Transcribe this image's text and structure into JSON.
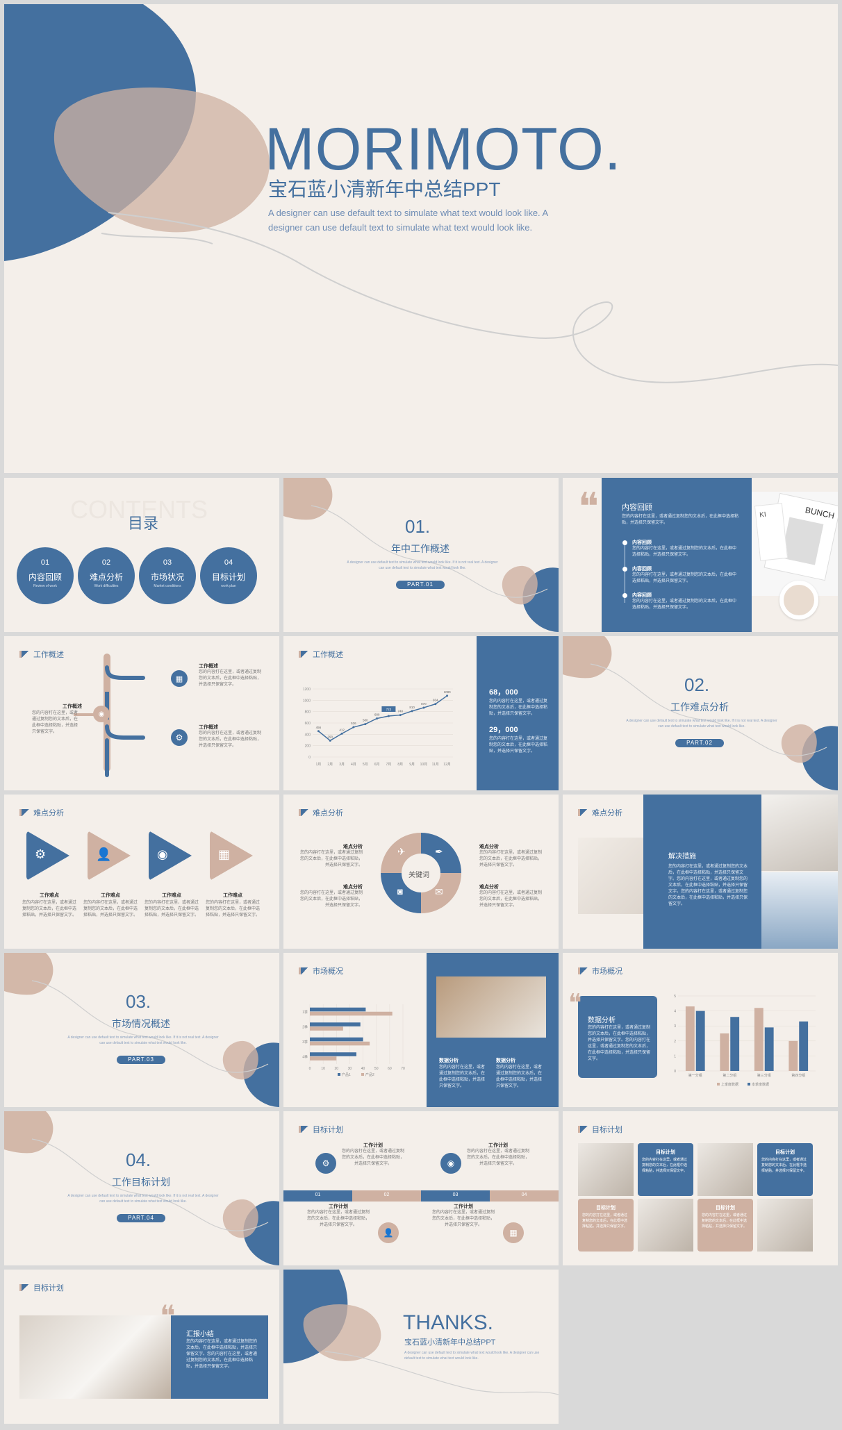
{
  "colors": {
    "blue": "#44709f",
    "tan": "#cfb1a2",
    "bg": "#f4efea"
  },
  "hero": {
    "title": "MORIMOTO.",
    "subtitle": "宝石蓝小清新年中总结PPT",
    "desc": "A designer can use default text to simulate what text would look like. A designer can use default text to simulate what text would look like."
  },
  "contents": {
    "ghost": "CONTENTS",
    "title": "目录",
    "items": [
      {
        "num": "01",
        "label": "内容回顾",
        "sub": "Review of work"
      },
      {
        "num": "02",
        "label": "难点分析",
        "sub": "Work difficulties"
      },
      {
        "num": "03",
        "label": "市场状况",
        "sub": "Market conditions"
      },
      {
        "num": "04",
        "label": "目标计划",
        "sub": "work plan"
      }
    ]
  },
  "section1": {
    "num": "01.",
    "title": "年中工作概述",
    "desc": "A designer can use default text to simulate what text would look like. If it is not real text. A designer can use default text to simulate what text would look like.",
    "part": "PART.01"
  },
  "section2": {
    "num": "02.",
    "title": "工作难点分析",
    "desc": "A designer can use default text to simulate what text would look like. If it is not real text. A designer can use default text to simulate what text would look like.",
    "part": "PART.02"
  },
  "section3": {
    "num": "03.",
    "title": "市场情况概述",
    "desc": "A designer can use default text to simulate what text would look like. If it is not real text. A designer can use default text to simulate what text would look like.",
    "part": "PART.03"
  },
  "section4": {
    "num": "04.",
    "title": "工作目标计划",
    "desc": "A designer can use default text to simulate what text would look like. If it is not real text. A designer can use default text to simulate what text would look like.",
    "part": "PART.04"
  },
  "review": {
    "title": "内容回顾",
    "body": "您的内容打在这里，或者通过复制您的文本后，在此框中选择粘贴，并选择只保留文字。",
    "items": [
      {
        "title": "内容回顾",
        "body": "您的内容打在这里，或者通过复制您的文本后，在此框中选择粘贴，并选择只保留文字。"
      },
      {
        "title": "内容回顾",
        "body": "您的内容打在这里，或者通过复制您的文本后，在此框中选择粘贴，并选择只保留文字。"
      },
      {
        "title": "内容回顾",
        "body": "您的内容打在这里，或者通过复制您的文本后，在此框中选择粘贴，并选择只保留文字。"
      }
    ],
    "book_text": "BUNCH",
    "book_text2": "KI"
  },
  "work_overview": {
    "header": "工作概述",
    "left_title": "工作概述",
    "left_body": "您的内容打在这里，或者通过复制您的文本后，在此框中选择粘贴，并选择只保留文字。",
    "right": [
      {
        "title": "工作概述",
        "body": "您的内容打在这里，或者通过复制您的文本后，在此框中选择粘贴，并选择只保留文字。"
      },
      {
        "title": "工作概述",
        "body": "您的内容打在这里，或者通过复制您的文本后，在此框中选择粘贴，并选择只保留文字。"
      }
    ]
  },
  "chart_data": [
    {
      "type": "line",
      "title": "",
      "x": [
        "1月",
        "2月",
        "3月",
        "4月",
        "5月",
        "6月",
        "7月",
        "8月",
        "9月",
        "10月",
        "11月",
        "12月"
      ],
      "values": [
        456,
        290,
        412,
        526,
        580,
        680,
        723,
        740,
        810,
        870,
        934,
        1080
      ],
      "labels": [
        "456",
        "290",
        "412",
        "526",
        "580",
        "680",
        "723",
        "740",
        "810",
        "870",
        "934",
        "1080"
      ],
      "highlight": "723",
      "ylim": [
        0,
        1200
      ],
      "yticks": [
        "0",
        "200",
        "400",
        "600",
        "800",
        "1000",
        "1200"
      ],
      "xlabel": "",
      "ylabel": ""
    },
    {
      "type": "bar",
      "orientation": "horizontal",
      "categories": [
        "1季",
        "2季",
        "3季",
        "4季"
      ],
      "series": [
        {
          "name": "产品1",
          "values": [
            42,
            38,
            40,
            35
          ]
        },
        {
          "name": "产品2",
          "values": [
            62,
            25,
            45,
            20
          ]
        }
      ],
      "xlim": [
        0,
        70
      ],
      "xticks": [
        "0",
        "10",
        "20",
        "30",
        "40",
        "50",
        "60",
        "70"
      ]
    },
    {
      "type": "bar",
      "categories": [
        "第一分组",
        "第二分组",
        "第三分组",
        "第四分组"
      ],
      "series": [
        {
          "name": "上季度数据",
          "values": [
            4.3,
            2.5,
            4.2,
            2.0
          ]
        },
        {
          "name": "本季度数据",
          "values": [
            4.0,
            3.6,
            2.9,
            3.3
          ]
        }
      ],
      "ylim": [
        0,
        5
      ],
      "yticks": [
        "0",
        "1",
        "2",
        "3",
        "4",
        "5"
      ]
    }
  ],
  "stats": {
    "a": {
      "value": "68，000",
      "body": "您的内容打在这里，或者通过复制您的文本后，在此框中选择粘贴，并选择只保留文字。"
    },
    "b": {
      "value": "29，000",
      "body": "您的内容打在这里，或者通过复制您的文本后，在此框中选择粘贴，并选择只保留文字。"
    }
  },
  "difficulty": {
    "header": "难点分析",
    "items": [
      {
        "title": "工作难点",
        "body": "您的内容打在这里，或者通过复制您的文本后，在此框中选择粘贴，并选择只保留文字。"
      },
      {
        "title": "工作难点",
        "body": "您的内容打在这里，或者通过复制您的文本后，在此框中选择粘贴，并选择只保留文字。"
      },
      {
        "title": "工作难点",
        "body": "您的内容打在这里，或者通过复制您的文本后，在此框中选择粘贴，并选择只保留文字。"
      },
      {
        "title": "工作难点",
        "body": "您的内容打在这里，或者通过复制您的文本后，在此框中选择粘贴，并选择只保留文字。"
      }
    ]
  },
  "keyword": {
    "header": "难点分析",
    "center": "关键词",
    "items": [
      {
        "title": "难点分析",
        "body": "您的内容打在这里，或者通过复制您的文本后，在此框中选择粘贴，并选择只保留文字。"
      },
      {
        "title": "难点分析",
        "body": "您的内容打在这里，或者通过复制您的文本后，在此框中选择粘贴，并选择只保留文字。"
      },
      {
        "title": "难点分析",
        "body": "您的内容打在这里，或者通过复制您的文本后，在此框中选择粘贴，并选择只保留文字。"
      },
      {
        "title": "难点分析",
        "body": "您的内容打在这里，或者通过复制您的文本后，在此框中选择粘贴，并选择只保留文字。"
      }
    ]
  },
  "solution": {
    "header": "难点分析",
    "title": "解决措施",
    "body": "您的内容打在这里，或者通过复制您的文本后，在此框中选择粘贴，并选择只保留文字。您的内容打在这里，或者通过复制您的文本后，在此框中选择粘贴，并选择只保留文字。您的内容打在这里，或者通过复制您的文本后，在此框中选择粘贴，并选择只保留文字。"
  },
  "market": {
    "header": "市场概况",
    "a": {
      "title": "数据分析",
      "body": "您的内容打在这里，或者通过复制您的文本后，在此框中选择粘贴，并选择只保留文字。"
    },
    "b": {
      "title": "数据分析",
      "body": "您的内容打在这里，或者通过复制您的文本后，在此框中选择粘贴，并选择只保留文字。"
    }
  },
  "market2": {
    "header": "市场概况",
    "title": "数据分析",
    "body": "您的内容打在这里，或者通过复制您的文本后，在此框中选择粘贴，并选择只保留文字。您的内容打在这里，或者通过复制您的文本后，在此框中选择粘贴，并选择只保留文字。"
  },
  "plan": {
    "header": "目标计划",
    "steps": [
      "01",
      "02",
      "03",
      "04"
    ],
    "items": [
      {
        "title": "工作计划",
        "body": "您的内容打在这里，或者通过复制您的文本后，在此框中选择粘贴，并选择只保留文字。"
      },
      {
        "title": "工作计划",
        "body": "您的内容打在这里，或者通过复制您的文本后，在此框中选择粘贴，并选择只保留文字。"
      },
      {
        "title": "工作计划",
        "body": "您的内容打在这里，或者通过复制您的文本后，在此框中选择粘贴，并选择只保留文字。"
      },
      {
        "title": "工作计划",
        "body": "您的内容打在这里，或者通过复制您的文本后，在此框中选择粘贴，并选择只保留文字。"
      }
    ]
  },
  "plan2": {
    "header": "目标计划",
    "items": [
      {
        "title": "目标计划",
        "body": "您的内容打在这里，或者通过复制您的文本后，在此框中选择粘贴，并选择只保留文字。"
      },
      {
        "title": "目标计划",
        "body": "您的内容打在这里，或者通过复制您的文本后，在此框中选择粘贴，并选择只保留文字。"
      },
      {
        "title": "目标计划",
        "body": "您的内容打在这里，或者通过复制您的文本后，在此框中选择粘贴，并选择只保留文字。"
      },
      {
        "title": "目标计划",
        "body": "您的内容打在这里，或者通过复制您的文本后，在此框中选择粘贴，并选择只保留文字。"
      }
    ]
  },
  "summary": {
    "header": "目标计划",
    "title": "汇报小结",
    "body": "您的内容打在这里，或者通过复制您的文本后，在此框中选择粘贴，并选择只保留文字。您的内容打在这里，或者通过复制您的文本后，在此框中选择粘贴，并选择只保留文字。"
  },
  "thanks": {
    "title": "THANKS.",
    "subtitle": "宝石蓝小清新年中总结PPT",
    "desc": "A designer can use default text to simulate what text would look like. A designer can use default text to simulate what text would look like."
  }
}
